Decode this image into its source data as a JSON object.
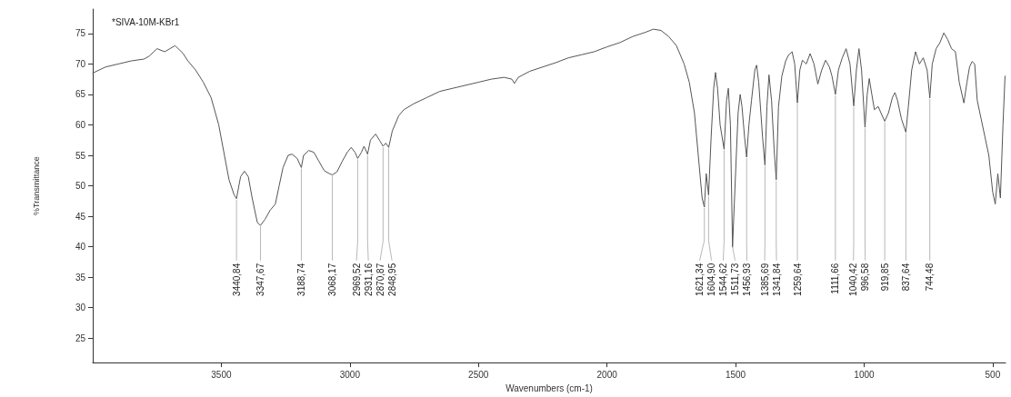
{
  "chart_data": {
    "type": "line",
    "title": "*SIVA-10M-KBr1",
    "xlabel": "Wavenumbers (cm-1)",
    "ylabel": "%Transmittance",
    "xlim": [
      4000,
      450
    ],
    "xticks": [
      3500,
      3000,
      2500,
      2000,
      1500,
      1000,
      500
    ],
    "ylim": [
      21,
      79
    ],
    "yticks": [
      25,
      30,
      35,
      40,
      45,
      50,
      55,
      60,
      65,
      70,
      75
    ],
    "marker": "none",
    "line_style": "solid",
    "series": [
      {
        "color": "#555555",
        "x": [
          4000,
          3950,
          3900,
          3850,
          3800,
          3780,
          3750,
          3720,
          3700,
          3680,
          3650,
          3630,
          3600,
          3570,
          3540,
          3510,
          3490,
          3470,
          3450,
          3440.84,
          3425,
          3410,
          3395,
          3380,
          3360,
          3347.67,
          3330,
          3310,
          3290,
          3275,
          3260,
          3240,
          3225,
          3205,
          3188.74,
          3180,
          3160,
          3140,
          3120,
          3100,
          3080,
          3068.17,
          3050,
          3030,
          3010,
          2995,
          2980,
          2969.52,
          2955,
          2945,
          2931.16,
          2920,
          2900,
          2885,
          2870.87,
          2860,
          2848.95,
          2835,
          2810,
          2790,
          2750,
          2700,
          2650,
          2600,
          2550,
          2500,
          2450,
          2400,
          2370,
          2360,
          2345,
          2300,
          2250,
          2200,
          2150,
          2100,
          2050,
          2000,
          1950,
          1900,
          1850,
          1820,
          1790,
          1760,
          1730,
          1700,
          1680,
          1660,
          1645,
          1630,
          1621.34,
          1614,
          1604.9,
          1595,
          1585,
          1578,
          1570,
          1560,
          1544.62,
          1535,
          1528,
          1520,
          1511.73,
          1500,
          1490,
          1482,
          1475,
          1465,
          1456.93,
          1448,
          1438,
          1425,
          1418,
          1410,
          1395,
          1385.69,
          1378,
          1370,
          1360,
          1350,
          1341.84,
          1333,
          1320,
          1305,
          1295,
          1280,
          1270,
          1259.64,
          1250,
          1240,
          1225,
          1210,
          1195,
          1180,
          1165,
          1150,
          1135,
          1125,
          1111.66,
          1100,
          1085,
          1070,
          1055,
          1040.42,
          1030,
          1020,
          1010,
          996.58,
          988,
          980,
          970,
          960,
          945,
          935,
          919.85,
          905,
          890,
          880,
          870,
          855,
          837.64,
          828,
          815,
          800,
          785,
          770,
          755,
          744.48,
          735,
          720,
          705,
          690,
          675,
          660,
          645,
          630,
          612,
          600,
          590,
          580,
          570,
          560,
          545,
          530,
          515,
          500,
          490,
          480,
          470,
          460,
          452
        ],
        "values": [
          68.5,
          69.5,
          70,
          70.5,
          70.8,
          71.3,
          72.5,
          72,
          72.5,
          73,
          71.8,
          70.5,
          69,
          67,
          64.5,
          60,
          55.5,
          51,
          48.5,
          47.9,
          51.5,
          52.4,
          51.5,
          48,
          44,
          43.5,
          44.5,
          46,
          47,
          50,
          53,
          55,
          55.2,
          54.5,
          53,
          55,
          55.8,
          55.5,
          54,
          52.5,
          52,
          51.8,
          52.3,
          54,
          55.5,
          56.3,
          55.5,
          54.5,
          55.5,
          56.5,
          55.2,
          57.5,
          58.5,
          57.5,
          56.5,
          57,
          56.3,
          59,
          61.5,
          62.5,
          63.5,
          64.5,
          65.5,
          66,
          66.5,
          67,
          67.5,
          67.8,
          67.5,
          66.8,
          67.8,
          68.8,
          69.5,
          70.2,
          71,
          71.5,
          72,
          72.8,
          73.5,
          74.5,
          75.2,
          75.7,
          75.5,
          74.5,
          73,
          70,
          67,
          62,
          55,
          48,
          46.5,
          52,
          48.5,
          58,
          66,
          68.6,
          66,
          60,
          56,
          64,
          66,
          60,
          40,
          52,
          62,
          65,
          63,
          58,
          54.7,
          60,
          64,
          69,
          69.8,
          67,
          58,
          53.4,
          63,
          68.2,
          64,
          56,
          51,
          63,
          68,
          70.5,
          71.4,
          72,
          70,
          63.6,
          69,
          70.6,
          70,
          71.7,
          70,
          66.7,
          69,
          70.6,
          69.5,
          68,
          65,
          69,
          71,
          72.5,
          70,
          63.1,
          69,
          72.5,
          69,
          59.6,
          65,
          67.6,
          65,
          62.5,
          63,
          62,
          60.6,
          62,
          64.5,
          65.3,
          64,
          61,
          58.8,
          63,
          69,
          72,
          70,
          71,
          69,
          64.4,
          70,
          72.5,
          73.5,
          75.1,
          74,
          72.5,
          72,
          67,
          63.6,
          67,
          69.5,
          70.4,
          70,
          64,
          61,
          58,
          55,
          49,
          47,
          52,
          48,
          60,
          68
        ]
      }
    ],
    "annotations": [
      {
        "text": "3440,84",
        "x": 3440.84,
        "y": 47.9
      },
      {
        "text": "3347,67",
        "x": 3347.67,
        "y": 43.5
      },
      {
        "text": "3188,74",
        "x": 3188.74,
        "y": 53
      },
      {
        "text": "3068,17",
        "x": 3068.17,
        "y": 51.8
      },
      {
        "text": "2969,52",
        "x": 2969.52,
        "y": 54.5
      },
      {
        "text": "2931,16",
        "x": 2931.16,
        "y": 55.2
      },
      {
        "text": "2870,87",
        "x": 2870.87,
        "y": 56.5
      },
      {
        "text": "2848,95",
        "x": 2848.95,
        "y": 56.3
      },
      {
        "text": "1621,34",
        "x": 1621.34,
        "y": 46.5
      },
      {
        "text": "1604,90",
        "x": 1604.9,
        "y": 48.5
      },
      {
        "text": "1544,62",
        "x": 1544.62,
        "y": 56
      },
      {
        "text": "1511,73",
        "x": 1511.73,
        "y": 40
      },
      {
        "text": "1456,93",
        "x": 1456.93,
        "y": 54.7
      },
      {
        "text": "1385,69",
        "x": 1385.69,
        "y": 53.4
      },
      {
        "text": "1341,84",
        "x": 1341.84,
        "y": 51
      },
      {
        "text": "1259,64",
        "x": 1259.64,
        "y": 63.6
      },
      {
        "text": "1111,66",
        "x": 1111.66,
        "y": 65
      },
      {
        "text": "1040,42",
        "x": 1040.42,
        "y": 63.1
      },
      {
        "text": "996,58",
        "x": 996.58,
        "y": 59.6
      },
      {
        "text": "919,85",
        "x": 919.85,
        "y": 60.6
      },
      {
        "text": "837,64",
        "x": 837.64,
        "y": 58.8
      },
      {
        "text": "744,48",
        "x": 744.48,
        "y": 64.4
      }
    ]
  }
}
